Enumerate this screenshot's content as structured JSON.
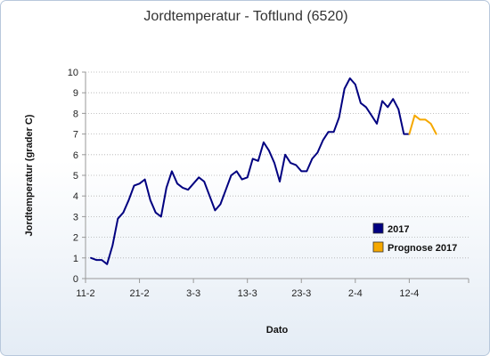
{
  "chart_data": {
    "type": "line",
    "title": "Jordtemperatur - Toftlund (6520)",
    "xlabel": "Dato",
    "ylabel": "Jordtemperatur (grader C)",
    "ylim": [
      0,
      10
    ],
    "yticks": [
      0,
      1,
      2,
      3,
      4,
      5,
      6,
      7,
      8,
      9,
      10
    ],
    "xlim": [
      0,
      61
    ],
    "xticks": [
      {
        "x": 0,
        "label": "11-2"
      },
      {
        "x": 10,
        "label": "21-2"
      },
      {
        "x": 20,
        "label": "3-3"
      },
      {
        "x": 30,
        "label": "13-3"
      },
      {
        "x": 40,
        "label": "23-3"
      },
      {
        "x": 50,
        "label": "2-4"
      },
      {
        "x": 60,
        "label": "12-4"
      }
    ],
    "grid": "horizontal",
    "legend_position": "right",
    "series": [
      {
        "name": "2017",
        "color": "#000080",
        "x": [
          1,
          2,
          3,
          4,
          5,
          6,
          7,
          8,
          9,
          10,
          11,
          12,
          13,
          14,
          15,
          16,
          17,
          18,
          19,
          20,
          21,
          22,
          23,
          24,
          25,
          26,
          27,
          28,
          29,
          30,
          31,
          32,
          33,
          34,
          35,
          36,
          37,
          38,
          39,
          40,
          41,
          42,
          43,
          44,
          45,
          46,
          47,
          48,
          49,
          50,
          51,
          52,
          53,
          54,
          55,
          56,
          57,
          58,
          59,
          60
        ],
        "y": [
          1.0,
          0.9,
          0.9,
          0.7,
          1.6,
          2.9,
          3.2,
          3.8,
          4.5,
          4.6,
          4.8,
          3.8,
          3.2,
          3.0,
          4.4,
          5.2,
          4.6,
          4.4,
          4.3,
          4.6,
          4.9,
          4.7,
          4.0,
          3.3,
          3.6,
          4.3,
          5.0,
          5.2,
          4.8,
          4.9,
          5.8,
          5.7,
          6.6,
          6.2,
          5.6,
          4.7,
          6.0,
          5.6,
          5.5,
          5.2,
          5.2,
          5.8,
          6.1,
          6.7,
          7.1,
          7.1,
          7.8,
          9.2,
          9.7,
          9.4,
          8.5,
          8.3,
          7.9,
          7.5,
          8.6,
          8.3,
          8.7,
          8.2,
          7.0,
          7.0
        ]
      },
      {
        "name": "Prognose 2017",
        "color": "#f5a800",
        "x": [
          60,
          61,
          62,
          63,
          64,
          65
        ],
        "y": [
          7.0,
          7.9,
          7.7,
          7.7,
          7.5,
          7.0
        ]
      }
    ],
    "legend": [
      {
        "label": "2017",
        "color": "#000080"
      },
      {
        "label": "Prognose 2017",
        "color": "#f5a800"
      }
    ]
  }
}
